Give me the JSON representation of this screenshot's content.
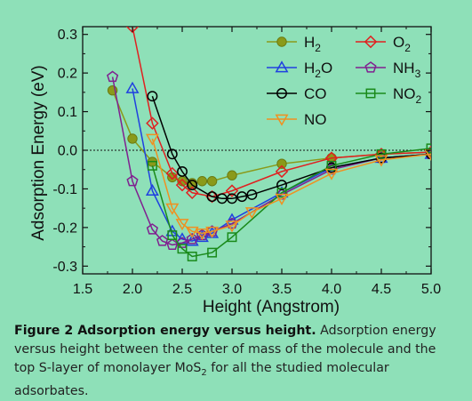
{
  "figure": {
    "caption_label": "Figure 2",
    "caption_title": "Adsorption energy versus height.",
    "caption_text_1": "Adsorption energy versus height between the center of mass of the molecule and the top S-layer of monolayer MoS",
    "caption_sub": "2",
    "caption_text_2": " for all the studied molecular adsorbates."
  },
  "chart_data": {
    "type": "line",
    "xlabel": "Height (Angstrom)",
    "ylabel": "Adsorption Energy (eV)",
    "xlim": [
      1.5,
      5.0
    ],
    "ylim": [
      -0.32,
      0.32
    ],
    "x_ticks": [
      "1.5",
      "2.0",
      "2.5",
      "3.0",
      "3.5",
      "4.0",
      "4.5",
      "5.0"
    ],
    "y_ticks": [
      "0.3",
      "0.2",
      "0.1",
      "0.0",
      "-0.1",
      "-0.2",
      "-0.3"
    ],
    "zero_line": "dotted",
    "legend_position": "top-right",
    "series": [
      {
        "key": "H2",
        "label": "H",
        "sub": "2",
        "color": "#8a9a1a",
        "marker": "circle-filled",
        "x": [
          1.8,
          2.0,
          2.2,
          2.4,
          2.5,
          2.6,
          2.7,
          2.8,
          3.0,
          3.5,
          4.0,
          4.5,
          5.0
        ],
        "y": [
          0.155,
          0.03,
          -0.03,
          -0.07,
          -0.08,
          -0.085,
          -0.08,
          -0.08,
          -0.065,
          -0.035,
          -0.02,
          -0.01,
          -0.005
        ]
      },
      {
        "key": "O2",
        "label": "O",
        "sub": "2",
        "color": "#e02020",
        "marker": "diamond",
        "x": [
          2.0,
          2.2,
          2.4,
          2.5,
          2.6,
          2.8,
          3.0,
          3.5,
          4.0,
          4.5,
          5.0
        ],
        "y": [
          0.32,
          0.07,
          -0.06,
          -0.09,
          -0.11,
          -0.12,
          -0.105,
          -0.055,
          -0.02,
          -0.01,
          -0.005
        ]
      },
      {
        "key": "H2O",
        "label": "H",
        "sub": "2",
        "suffix": "O",
        "color": "#2040e0",
        "marker": "triangle",
        "x": [
          2.0,
          2.2,
          2.4,
          2.5,
          2.6,
          2.7,
          2.8,
          3.0,
          3.5,
          4.0,
          4.5,
          5.0
        ],
        "y": [
          0.16,
          -0.105,
          -0.21,
          -0.23,
          -0.235,
          -0.225,
          -0.215,
          -0.18,
          -0.11,
          -0.045,
          -0.02,
          -0.01
        ]
      },
      {
        "key": "NH3",
        "label": "NH",
        "sub": "3",
        "color": "#802090",
        "marker": "pentagon",
        "x": [
          1.8,
          2.0,
          2.2,
          2.3,
          2.4,
          2.5,
          2.6,
          2.7,
          2.8,
          3.0,
          3.5,
          4.0,
          4.5,
          5.0
        ],
        "y": [
          0.19,
          -0.08,
          -0.205,
          -0.235,
          -0.245,
          -0.24,
          -0.23,
          -0.22,
          -0.21,
          -0.19,
          -0.115,
          -0.05,
          -0.02,
          -0.01
        ]
      },
      {
        "key": "CO",
        "label": "CO",
        "sub": "",
        "color": "#000000",
        "marker": "circle-open",
        "x": [
          2.2,
          2.4,
          2.5,
          2.6,
          2.8,
          2.9,
          3.0,
          3.1,
          3.2,
          3.5,
          4.0,
          4.5,
          5.0
        ],
        "y": [
          0.14,
          -0.01,
          -0.055,
          -0.09,
          -0.12,
          -0.125,
          -0.125,
          -0.12,
          -0.115,
          -0.09,
          -0.045,
          -0.02,
          -0.01
        ]
      },
      {
        "key": "NO2",
        "label": "NO",
        "sub": "2",
        "color": "#1a8a1a",
        "marker": "square",
        "x": [
          2.2,
          2.4,
          2.5,
          2.6,
          2.8,
          3.0,
          3.5,
          4.0,
          4.5,
          5.0
        ],
        "y": [
          -0.04,
          -0.22,
          -0.255,
          -0.275,
          -0.265,
          -0.225,
          -0.11,
          -0.04,
          -0.01,
          0.005
        ]
      },
      {
        "key": "NO",
        "label": "NO",
        "sub": "",
        "color": "#f09020",
        "marker": "triangle-down",
        "x": [
          2.2,
          2.4,
          2.5,
          2.6,
          2.7,
          2.8,
          3.0,
          3.2,
          3.5,
          4.0,
          4.5,
          5.0
        ],
        "y": [
          0.03,
          -0.15,
          -0.19,
          -0.21,
          -0.215,
          -0.21,
          -0.195,
          -0.16,
          -0.125,
          -0.06,
          -0.025,
          -0.01
        ]
      }
    ]
  }
}
